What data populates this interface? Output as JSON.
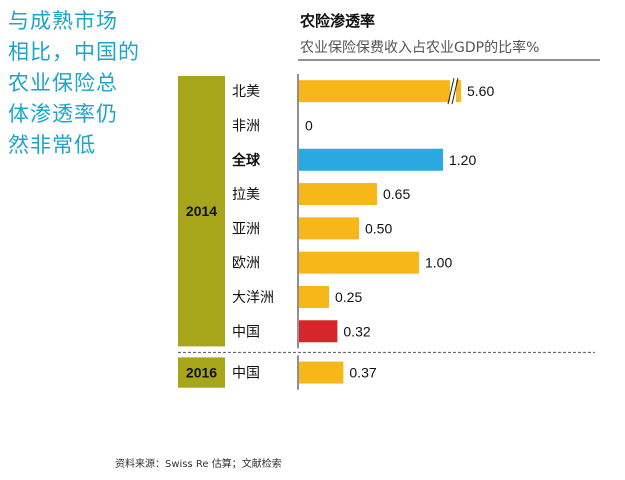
{
  "side_text": [
    "与成熟市场",
    "相比，中国的",
    "农业保险总",
    "体渗透率仍",
    "然非常低"
  ],
  "colors": {
    "accent_text": "#1aa6c9",
    "group_box": "#a7a51a",
    "bar_default": "#f7b719",
    "bar_global": "#2aa9e0",
    "bar_china": "#d7252c"
  },
  "chart_data": {
    "type": "bar",
    "orientation": "horizontal",
    "title": "农险渗透率",
    "subtitle": "农业保险保费收入占农业GDP的比率%",
    "groups": [
      {
        "year": "2014",
        "categories": [
          "北美",
          "非洲",
          "全球",
          "拉美",
          "亚洲",
          "欧洲",
          "大洋洲",
          "中国"
        ],
        "values": [
          5.6,
          0,
          1.2,
          0.65,
          0.5,
          1.0,
          0.25,
          0.32
        ],
        "value_labels": [
          "5.60",
          "0",
          "1.20",
          "0.65",
          "0.50",
          "1.00",
          "0.25",
          "0.32"
        ],
        "bar_colors": [
          "#f7b719",
          "#f7b719",
          "#2aa9e0",
          "#f7b719",
          "#f7b719",
          "#f7b719",
          "#f7b719",
          "#d7252c"
        ],
        "bold": [
          false,
          false,
          true,
          false,
          false,
          false,
          false,
          false
        ]
      },
      {
        "year": "2016",
        "categories": [
          "中国"
        ],
        "values": [
          0.37
        ],
        "value_labels": [
          "0.37"
        ],
        "bar_colors": [
          "#f7b719"
        ],
        "bold": [
          false
        ]
      }
    ],
    "axis_break_on": "北美"
  },
  "source": "资料来源：Swiss Re 估算；文献检索"
}
